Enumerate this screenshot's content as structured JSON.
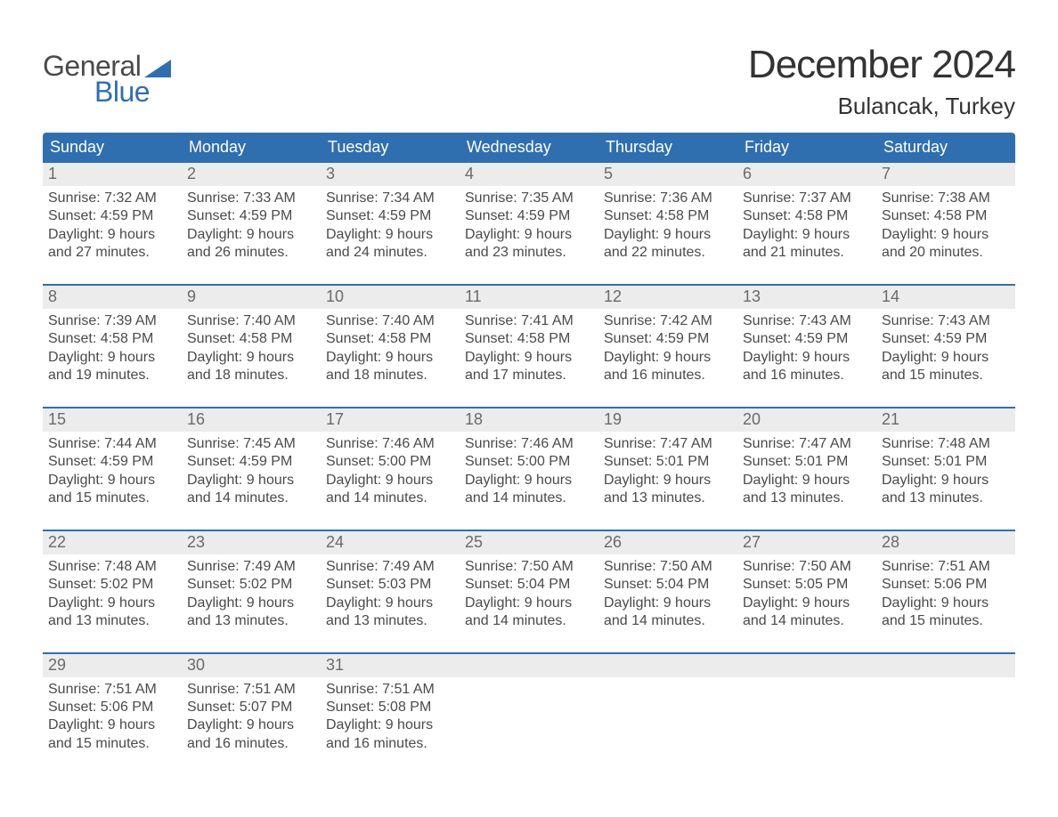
{
  "logo": {
    "word1": "General",
    "word2": "Blue"
  },
  "colors": {
    "brand_blue": "#2f6fb0",
    "header_text": "#333333",
    "body_text": "#4a4a4a",
    "row_bg": "#ececec",
    "white": "#ffffff"
  },
  "title": "December 2024",
  "location": "Bulancak, Turkey",
  "weekdays": [
    "Sunday",
    "Monday",
    "Tuesday",
    "Wednesday",
    "Thursday",
    "Friday",
    "Saturday"
  ],
  "weeks": [
    [
      {
        "n": "1",
        "sr": "Sunrise: 7:32 AM",
        "ss": "Sunset: 4:59 PM",
        "d1": "Daylight: 9 hours",
        "d2": "and 27 minutes."
      },
      {
        "n": "2",
        "sr": "Sunrise: 7:33 AM",
        "ss": "Sunset: 4:59 PM",
        "d1": "Daylight: 9 hours",
        "d2": "and 26 minutes."
      },
      {
        "n": "3",
        "sr": "Sunrise: 7:34 AM",
        "ss": "Sunset: 4:59 PM",
        "d1": "Daylight: 9 hours",
        "d2": "and 24 minutes."
      },
      {
        "n": "4",
        "sr": "Sunrise: 7:35 AM",
        "ss": "Sunset: 4:59 PM",
        "d1": "Daylight: 9 hours",
        "d2": "and 23 minutes."
      },
      {
        "n": "5",
        "sr": "Sunrise: 7:36 AM",
        "ss": "Sunset: 4:58 PM",
        "d1": "Daylight: 9 hours",
        "d2": "and 22 minutes."
      },
      {
        "n": "6",
        "sr": "Sunrise: 7:37 AM",
        "ss": "Sunset: 4:58 PM",
        "d1": "Daylight: 9 hours",
        "d2": "and 21 minutes."
      },
      {
        "n": "7",
        "sr": "Sunrise: 7:38 AM",
        "ss": "Sunset: 4:58 PM",
        "d1": "Daylight: 9 hours",
        "d2": "and 20 minutes."
      }
    ],
    [
      {
        "n": "8",
        "sr": "Sunrise: 7:39 AM",
        "ss": "Sunset: 4:58 PM",
        "d1": "Daylight: 9 hours",
        "d2": "and 19 minutes."
      },
      {
        "n": "9",
        "sr": "Sunrise: 7:40 AM",
        "ss": "Sunset: 4:58 PM",
        "d1": "Daylight: 9 hours",
        "d2": "and 18 minutes."
      },
      {
        "n": "10",
        "sr": "Sunrise: 7:40 AM",
        "ss": "Sunset: 4:58 PM",
        "d1": "Daylight: 9 hours",
        "d2": "and 18 minutes."
      },
      {
        "n": "11",
        "sr": "Sunrise: 7:41 AM",
        "ss": "Sunset: 4:58 PM",
        "d1": "Daylight: 9 hours",
        "d2": "and 17 minutes."
      },
      {
        "n": "12",
        "sr": "Sunrise: 7:42 AM",
        "ss": "Sunset: 4:59 PM",
        "d1": "Daylight: 9 hours",
        "d2": "and 16 minutes."
      },
      {
        "n": "13",
        "sr": "Sunrise: 7:43 AM",
        "ss": "Sunset: 4:59 PM",
        "d1": "Daylight: 9 hours",
        "d2": "and 16 minutes."
      },
      {
        "n": "14",
        "sr": "Sunrise: 7:43 AM",
        "ss": "Sunset: 4:59 PM",
        "d1": "Daylight: 9 hours",
        "d2": "and 15 minutes."
      }
    ],
    [
      {
        "n": "15",
        "sr": "Sunrise: 7:44 AM",
        "ss": "Sunset: 4:59 PM",
        "d1": "Daylight: 9 hours",
        "d2": "and 15 minutes."
      },
      {
        "n": "16",
        "sr": "Sunrise: 7:45 AM",
        "ss": "Sunset: 4:59 PM",
        "d1": "Daylight: 9 hours",
        "d2": "and 14 minutes."
      },
      {
        "n": "17",
        "sr": "Sunrise: 7:46 AM",
        "ss": "Sunset: 5:00 PM",
        "d1": "Daylight: 9 hours",
        "d2": "and 14 minutes."
      },
      {
        "n": "18",
        "sr": "Sunrise: 7:46 AM",
        "ss": "Sunset: 5:00 PM",
        "d1": "Daylight: 9 hours",
        "d2": "and 14 minutes."
      },
      {
        "n": "19",
        "sr": "Sunrise: 7:47 AM",
        "ss": "Sunset: 5:01 PM",
        "d1": "Daylight: 9 hours",
        "d2": "and 13 minutes."
      },
      {
        "n": "20",
        "sr": "Sunrise: 7:47 AM",
        "ss": "Sunset: 5:01 PM",
        "d1": "Daylight: 9 hours",
        "d2": "and 13 minutes."
      },
      {
        "n": "21",
        "sr": "Sunrise: 7:48 AM",
        "ss": "Sunset: 5:01 PM",
        "d1": "Daylight: 9 hours",
        "d2": "and 13 minutes."
      }
    ],
    [
      {
        "n": "22",
        "sr": "Sunrise: 7:48 AM",
        "ss": "Sunset: 5:02 PM",
        "d1": "Daylight: 9 hours",
        "d2": "and 13 minutes."
      },
      {
        "n": "23",
        "sr": "Sunrise: 7:49 AM",
        "ss": "Sunset: 5:02 PM",
        "d1": "Daylight: 9 hours",
        "d2": "and 13 minutes."
      },
      {
        "n": "24",
        "sr": "Sunrise: 7:49 AM",
        "ss": "Sunset: 5:03 PM",
        "d1": "Daylight: 9 hours",
        "d2": "and 13 minutes."
      },
      {
        "n": "25",
        "sr": "Sunrise: 7:50 AM",
        "ss": "Sunset: 5:04 PM",
        "d1": "Daylight: 9 hours",
        "d2": "and 14 minutes."
      },
      {
        "n": "26",
        "sr": "Sunrise: 7:50 AM",
        "ss": "Sunset: 5:04 PM",
        "d1": "Daylight: 9 hours",
        "d2": "and 14 minutes."
      },
      {
        "n": "27",
        "sr": "Sunrise: 7:50 AM",
        "ss": "Sunset: 5:05 PM",
        "d1": "Daylight: 9 hours",
        "d2": "and 14 minutes."
      },
      {
        "n": "28",
        "sr": "Sunrise: 7:51 AM",
        "ss": "Sunset: 5:06 PM",
        "d1": "Daylight: 9 hours",
        "d2": "and 15 minutes."
      }
    ],
    [
      {
        "n": "29",
        "sr": "Sunrise: 7:51 AM",
        "ss": "Sunset: 5:06 PM",
        "d1": "Daylight: 9 hours",
        "d2": "and 15 minutes."
      },
      {
        "n": "30",
        "sr": "Sunrise: 7:51 AM",
        "ss": "Sunset: 5:07 PM",
        "d1": "Daylight: 9 hours",
        "d2": "and 16 minutes."
      },
      {
        "n": "31",
        "sr": "Sunrise: 7:51 AM",
        "ss": "Sunset: 5:08 PM",
        "d1": "Daylight: 9 hours",
        "d2": "and 16 minutes."
      },
      {
        "empty": true
      },
      {
        "empty": true
      },
      {
        "empty": true
      },
      {
        "empty": true
      }
    ]
  ]
}
